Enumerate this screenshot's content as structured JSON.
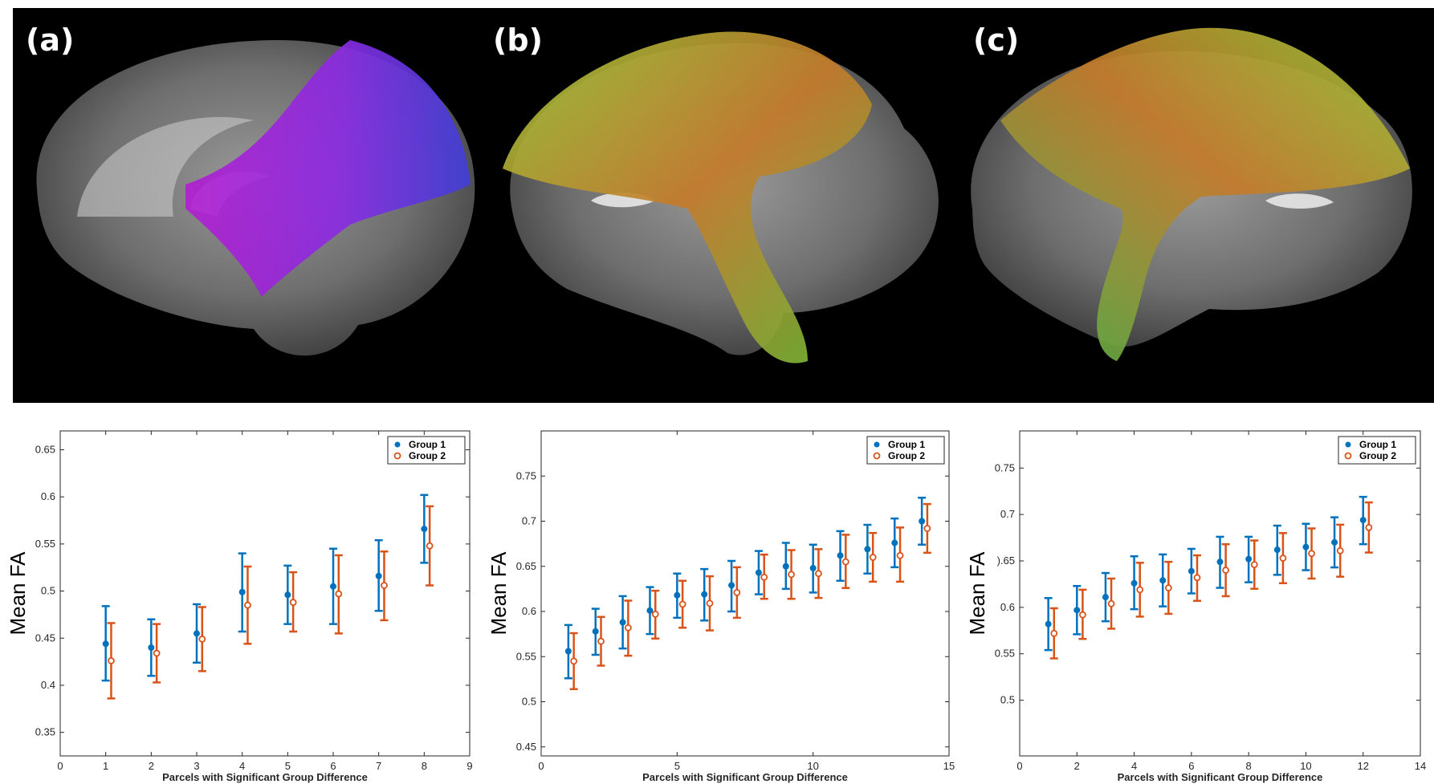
{
  "panels": {
    "a": {
      "label": "(a)"
    },
    "b": {
      "label": "(b)"
    },
    "c": {
      "label": "(c)"
    }
  },
  "colors": {
    "group1": "#0072bd",
    "group2": "#d95319",
    "tract_a": "#8a2be2",
    "tract_bc_green": "#7ec845",
    "tract_bc_orange": "#d4722a"
  },
  "chart_data": [
    {
      "type": "scatter",
      "title": "",
      "xlabel": "Parcels with Significant Group Difference",
      "ylabel": "Mean FA",
      "xlim": [
        0,
        9
      ],
      "ylim": [
        0.325,
        0.67
      ],
      "xticks": [
        0,
        1,
        2,
        3,
        4,
        5,
        6,
        7,
        8,
        9
      ],
      "xtick_labels": [
        "0",
        "1",
        "2",
        "3",
        "4",
        "5",
        "6",
        "7",
        "8",
        "9"
      ],
      "yticks": [
        0.35,
        0.4,
        0.45,
        0.5,
        0.55,
        0.6,
        0.65
      ],
      "ytick_labels": [
        "0.35",
        "0.4",
        "0.45",
        "0.5",
        "0.55",
        "0.6",
        "0.65"
      ],
      "legend": [
        "Group 1",
        "Group 2"
      ],
      "x": [
        1,
        2,
        3,
        4,
        5,
        6,
        7,
        8
      ],
      "series": [
        {
          "name": "Group 1",
          "values": [
            0.444,
            0.44,
            0.455,
            0.499,
            0.496,
            0.505,
            0.516,
            0.566
          ],
          "err_low": [
            0.405,
            0.41,
            0.424,
            0.457,
            0.465,
            0.465,
            0.479,
            0.53
          ],
          "err_high": [
            0.484,
            0.47,
            0.486,
            0.54,
            0.527,
            0.545,
            0.554,
            0.602
          ]
        },
        {
          "name": "Group 2",
          "values": [
            0.426,
            0.434,
            0.449,
            0.485,
            0.488,
            0.497,
            0.506,
            0.548
          ],
          "err_low": [
            0.386,
            0.403,
            0.415,
            0.444,
            0.457,
            0.455,
            0.469,
            0.506
          ],
          "err_high": [
            0.466,
            0.465,
            0.483,
            0.526,
            0.52,
            0.538,
            0.542,
            0.59
          ]
        }
      ]
    },
    {
      "type": "scatter",
      "title": "",
      "xlabel": "Parcels with Significant Group Difference",
      "ylabel": "Mean FA",
      "xlim": [
        0,
        15
      ],
      "ylim": [
        0.44,
        0.8
      ],
      "xticks": [
        0,
        5,
        10,
        15
      ],
      "xtick_labels": [
        "0",
        "5",
        "10",
        "15"
      ],
      "yticks": [
        0.45,
        0.5,
        0.55,
        0.6,
        0.65,
        0.7,
        0.75
      ],
      "ytick_labels": [
        "0.45",
        "0.5",
        "0.55",
        "0.6",
        "0.65",
        "0.7",
        "0.75"
      ],
      "legend": [
        "Group 1",
        "Group 2"
      ],
      "x": [
        1,
        2,
        3,
        4,
        5,
        6,
        7,
        8,
        9,
        10,
        11,
        12,
        13,
        14
      ],
      "series": [
        {
          "name": "Group 1",
          "values": [
            0.556,
            0.578,
            0.588,
            0.601,
            0.618,
            0.619,
            0.629,
            0.643,
            0.65,
            0.648,
            0.662,
            0.669,
            0.676,
            0.7
          ],
          "err_low": [
            0.526,
            0.552,
            0.559,
            0.575,
            0.593,
            0.59,
            0.6,
            0.619,
            0.625,
            0.621,
            0.634,
            0.642,
            0.649,
            0.674
          ],
          "err_high": [
            0.585,
            0.603,
            0.617,
            0.627,
            0.642,
            0.647,
            0.656,
            0.667,
            0.676,
            0.674,
            0.689,
            0.696,
            0.703,
            0.726
          ]
        },
        {
          "name": "Group 2",
          "values": [
            0.545,
            0.567,
            0.582,
            0.597,
            0.608,
            0.609,
            0.621,
            0.638,
            0.641,
            0.642,
            0.655,
            0.66,
            0.662,
            0.692
          ],
          "err_low": [
            0.514,
            0.54,
            0.551,
            0.57,
            0.582,
            0.579,
            0.593,
            0.614,
            0.614,
            0.615,
            0.626,
            0.633,
            0.633,
            0.665
          ],
          "err_high": [
            0.576,
            0.594,
            0.612,
            0.623,
            0.634,
            0.639,
            0.649,
            0.663,
            0.668,
            0.669,
            0.685,
            0.687,
            0.693,
            0.719
          ]
        }
      ]
    },
    {
      "type": "scatter",
      "title": "",
      "xlabel": "Parcels with Significant Group Difference",
      "ylabel": "Mean FA",
      "xlim": [
        0,
        14
      ],
      "ylim": [
        0.44,
        0.79
      ],
      "xticks": [
        0,
        2,
        4,
        6,
        8,
        10,
        12,
        14
      ],
      "xtick_labels": [
        "0",
        "2",
        "4",
        "6",
        "8",
        "10",
        "12",
        "14"
      ],
      "yticks": [
        0.5,
        0.55,
        0.6,
        0.65,
        0.7,
        0.75
      ],
      "ytick_labels": [
        "0.5",
        "0.55",
        "0.6",
        ").65",
        "0.7",
        "0.75"
      ],
      "legend": [
        "Group 1",
        "Group 2"
      ],
      "x": [
        1,
        2,
        3,
        4,
        5,
        6,
        7,
        8,
        9,
        10,
        11,
        12
      ],
      "series": [
        {
          "name": "Group 1",
          "values": [
            0.582,
            0.597,
            0.611,
            0.626,
            0.629,
            0.639,
            0.649,
            0.652,
            0.662,
            0.665,
            0.67,
            0.694
          ],
          "err_low": [
            0.554,
            0.571,
            0.585,
            0.598,
            0.601,
            0.615,
            0.621,
            0.627,
            0.635,
            0.64,
            0.643,
            0.668
          ],
          "err_high": [
            0.61,
            0.623,
            0.637,
            0.655,
            0.657,
            0.663,
            0.676,
            0.676,
            0.688,
            0.69,
            0.697,
            0.719
          ]
        },
        {
          "name": "Group 2",
          "values": [
            0.572,
            0.592,
            0.604,
            0.619,
            0.621,
            0.632,
            0.64,
            0.646,
            0.653,
            0.658,
            0.661,
            0.686
          ],
          "err_low": [
            0.545,
            0.566,
            0.577,
            0.59,
            0.593,
            0.607,
            0.612,
            0.62,
            0.626,
            0.631,
            0.633,
            0.659
          ],
          "err_high": [
            0.599,
            0.619,
            0.631,
            0.648,
            0.649,
            0.656,
            0.668,
            0.672,
            0.68,
            0.685,
            0.689,
            0.713
          ]
        }
      ]
    }
  ]
}
